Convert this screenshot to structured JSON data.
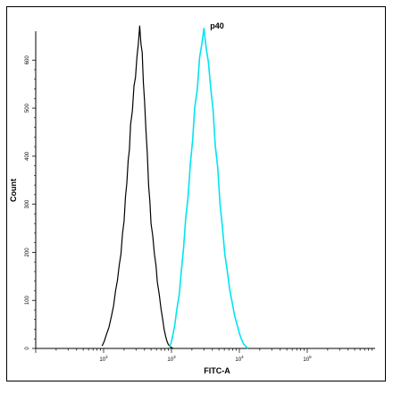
{
  "chart_data": {
    "type": "line",
    "title": "p40",
    "xlabel": "FITC-A",
    "ylabel": "Count",
    "x_scale": "log",
    "xlim": [
      10,
      1000000
    ],
    "ylim": [
      0,
      660
    ],
    "x_ticks": [
      {
        "base": "10",
        "exp": "2",
        "value": 100
      },
      {
        "base": "10",
        "exp": "3",
        "value": 1000
      },
      {
        "base": "10",
        "exp": "4",
        "value": 10000
      },
      {
        "base": "10",
        "exp": "5",
        "value": 100000
      }
    ],
    "y_ticks": [
      "0",
      "100",
      "200",
      "300",
      "400",
      "500",
      "600"
    ],
    "y_tick_values": [
      0,
      100,
      200,
      300,
      400,
      500,
      600
    ],
    "grid": false,
    "legend": "none",
    "series": [
      {
        "color": "#000000",
        "x": [
          95,
          102,
          110,
          120,
          130,
          140,
          150,
          160,
          170,
          180,
          190,
          200,
          210,
          220,
          230,
          240,
          250,
          265,
          280,
          295,
          310,
          325,
          340,
          355,
          370,
          385,
          400,
          420,
          440,
          460,
          480,
          500,
          530,
          560,
          590,
          620,
          660,
          700,
          740,
          780,
          820,
          860,
          900,
          950,
          1000,
          1050
        ],
        "y": [
          5,
          15,
          28,
          45,
          65,
          90,
          118,
          145,
          170,
          200,
          235,
          270,
          310,
          350,
          385,
          420,
          460,
          500,
          540,
          570,
          600,
          640,
          665,
          640,
          610,
          560,
          510,
          460,
          400,
          345,
          300,
          265,
          230,
          200,
          170,
          140,
          110,
          85,
          60,
          40,
          25,
          15,
          8,
          4,
          2,
          0
        ]
      },
      {
        "color": "#00e5ee",
        "x": [
          930,
          990,
          1050,
          1120,
          1200,
          1300,
          1400,
          1500,
          1620,
          1750,
          1900,
          2050,
          2200,
          2400,
          2600,
          2800,
          3000,
          3250,
          3500,
          3800,
          4100,
          4400,
          4800,
          5200,
          5600,
          6100,
          6600,
          7200,
          7800,
          8500,
          9200,
          10000,
          10800,
          11600,
          12500,
          13400
        ],
        "y": [
          3,
          12,
          28,
          50,
          80,
          115,
          160,
          210,
          265,
          320,
          380,
          440,
          495,
          545,
          600,
          640,
          660,
          630,
          590,
          545,
          490,
          430,
          370,
          305,
          250,
          200,
          160,
          125,
          95,
          70,
          50,
          32,
          18,
          9,
          4,
          0
        ]
      }
    ]
  }
}
